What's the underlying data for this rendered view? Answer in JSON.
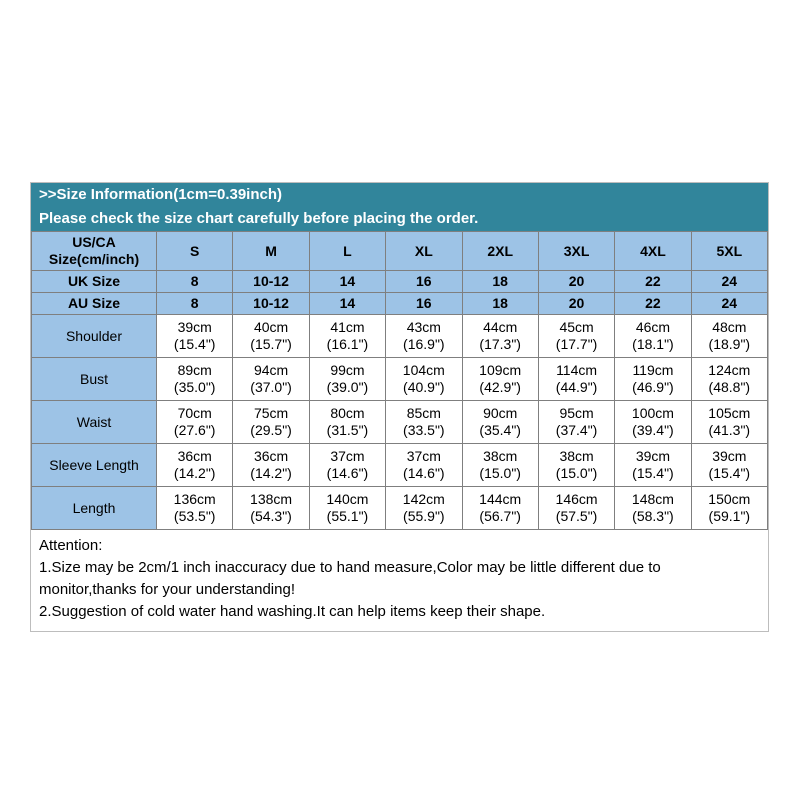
{
  "banner": {
    "line1": ">>Size Information(1cm=0.39inch)",
    "line2": "Please check the size chart carefully before placing the order."
  },
  "chart_data": {
    "type": "table",
    "title": "Size Information (1cm=0.39inch)",
    "corner_header": [
      "US/CA",
      "Size(cm/inch)"
    ],
    "size_columns": [
      "S",
      "M",
      "L",
      "XL",
      "2XL",
      "3XL",
      "4XL",
      "5XL"
    ],
    "size_rows": [
      {
        "label": "UK Size",
        "values": [
          "8",
          "10-12",
          "14",
          "16",
          "18",
          "20",
          "22",
          "24"
        ]
      },
      {
        "label": "AU Size",
        "values": [
          "8",
          "10-12",
          "14",
          "16",
          "18",
          "20",
          "22",
          "24"
        ]
      }
    ],
    "measurement_rows": [
      {
        "label": "Shoulder",
        "cm": [
          "39cm",
          "40cm",
          "41cm",
          "43cm",
          "44cm",
          "45cm",
          "46cm",
          "48cm"
        ],
        "inch": [
          "(15.4\")",
          "(15.7\")",
          "(16.1\")",
          "(16.9\")",
          "(17.3\")",
          "(17.7\")",
          "(18.1\")",
          "(18.9\")"
        ]
      },
      {
        "label": "Bust",
        "cm": [
          "89cm",
          "94cm",
          "99cm",
          "104cm",
          "109cm",
          "114cm",
          "119cm",
          "124cm"
        ],
        "inch": [
          "(35.0\")",
          "(37.0\")",
          "(39.0\")",
          "(40.9\")",
          "(42.9\")",
          "(44.9\")",
          "(46.9\")",
          "(48.8\")"
        ]
      },
      {
        "label": "Waist",
        "cm": [
          "70cm",
          "75cm",
          "80cm",
          "85cm",
          "90cm",
          "95cm",
          "100cm",
          "105cm"
        ],
        "inch": [
          "(27.6\")",
          "(29.5\")",
          "(31.5\")",
          "(33.5\")",
          "(35.4\")",
          "(37.4\")",
          "(39.4\")",
          "(41.3\")"
        ]
      },
      {
        "label": "Sleeve Length",
        "cm": [
          "36cm",
          "36cm",
          "37cm",
          "37cm",
          "38cm",
          "38cm",
          "39cm",
          "39cm"
        ],
        "inch": [
          "(14.2\")",
          "(14.2\")",
          "(14.6\")",
          "(14.6\")",
          "(15.0\")",
          "(15.0\")",
          "(15.4\")",
          "(15.4\")"
        ]
      },
      {
        "label": "Length",
        "cm": [
          "136cm",
          "138cm",
          "140cm",
          "142cm",
          "144cm",
          "146cm",
          "148cm",
          "150cm"
        ],
        "inch": [
          "(53.5\")",
          "(54.3\")",
          "(55.1\")",
          "(55.9\")",
          "(56.7\")",
          "(57.5\")",
          "(58.3\")",
          "(59.1\")"
        ]
      }
    ]
  },
  "attention": {
    "title": "Attention:",
    "line1": "1.Size may be 2cm/1 inch inaccuracy due to hand measure,Color may be little different due to monitor,thanks for your understanding!",
    "line2": "2.Suggestion of cold water hand washing.It can help items keep their shape."
  },
  "colors": {
    "banner_teal": "#31859B",
    "header_blue": "#9DC3E6",
    "cell_border": "#7f7f7f",
    "banner_text": "#ffffff"
  }
}
